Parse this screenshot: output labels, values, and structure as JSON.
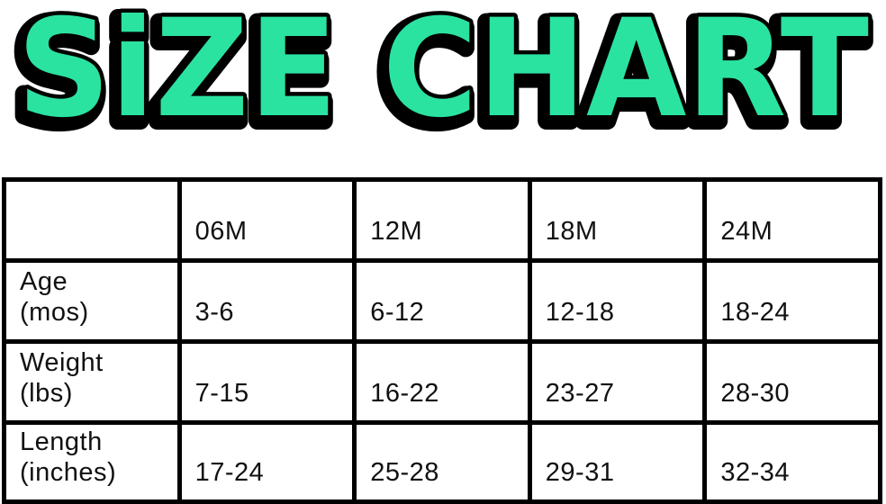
{
  "title": "SiZE CHART",
  "colors": {
    "title_fill": "#2BE3A1",
    "title_outline": "#000000",
    "table_border": "#000000",
    "text": "#111111",
    "background": "#ffffff"
  },
  "table": {
    "size_columns": [
      "06M",
      "12M",
      "18M",
      "24M"
    ],
    "rows": [
      {
        "label": "Age",
        "unit": "(mos)",
        "values": [
          "3-6",
          "6-12",
          "12-18",
          "18-24"
        ]
      },
      {
        "label": "Weight",
        "unit": "(lbs)",
        "values": [
          "7-15",
          "16-22",
          "23-27",
          "28-30"
        ]
      },
      {
        "label": "Length",
        "unit": "(inches)",
        "values": [
          "17-24",
          "25-28",
          "29-31",
          "32-34"
        ]
      }
    ]
  },
  "chart_data": {
    "type": "table",
    "title": "SIZE CHART",
    "columns": [
      "",
      "06M",
      "12M",
      "18M",
      "24M"
    ],
    "rows": [
      [
        "Age (mos)",
        "3-6",
        "6-12",
        "12-18",
        "18-24"
      ],
      [
        "Weight (lbs)",
        "7-15",
        "16-22",
        "23-27",
        "28-30"
      ],
      [
        "Length (inches)",
        "17-24",
        "25-28",
        "29-31",
        "32-34"
      ]
    ]
  }
}
